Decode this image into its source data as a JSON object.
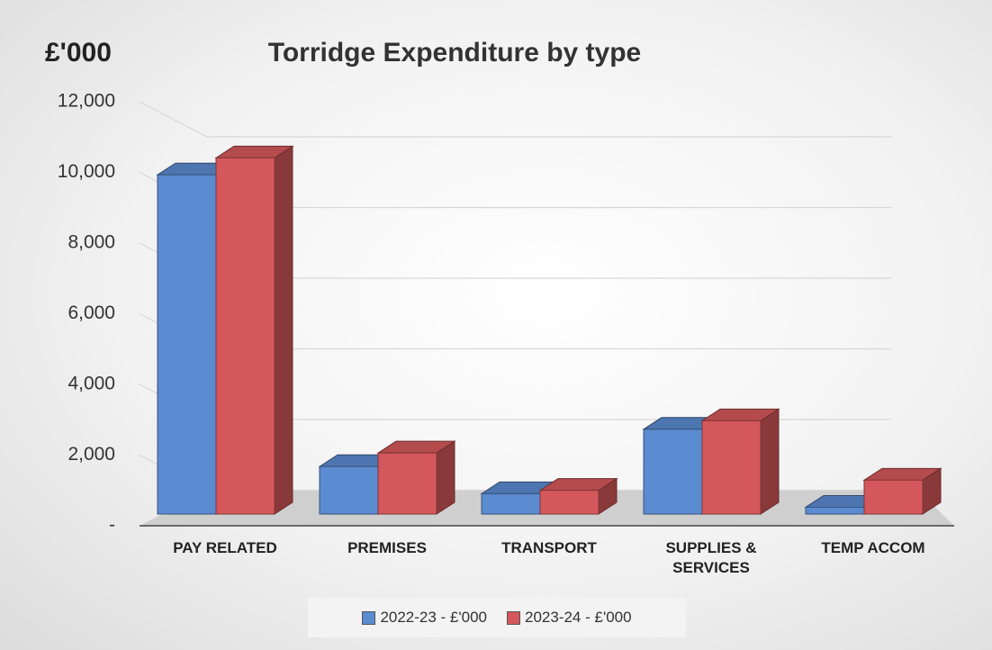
{
  "chart_data": {
    "type": "bar3d",
    "title": "Torridge Expenditure by type",
    "ylabel": "£'000",
    "categories": [
      "PAY RELATED",
      "PREMISES",
      "TRANSPORT",
      "SUPPLIES & SERVICES",
      "TEMP ACCOM"
    ],
    "series": [
      {
        "name": "2022-23 - £'000",
        "color": "#5b8bd0",
        "values": [
          10000,
          1400,
          600,
          2500,
          200
        ]
      },
      {
        "name": "2023-24 - £'000",
        "color": "#d4585b",
        "values": [
          10500,
          1800,
          700,
          2750,
          1000
        ]
      }
    ],
    "ylim": [
      0,
      12000
    ],
    "yticks": [
      {
        "value": 0,
        "label": "-"
      },
      {
        "value": 2000,
        "label": "2,000"
      },
      {
        "value": 4000,
        "label": "4,000"
      },
      {
        "value": 6000,
        "label": "6,000"
      },
      {
        "value": 8000,
        "label": "8,000"
      },
      {
        "value": 10000,
        "label": "10,000"
      },
      {
        "value": 12000,
        "label": "12,000"
      }
    ],
    "grid": true
  }
}
